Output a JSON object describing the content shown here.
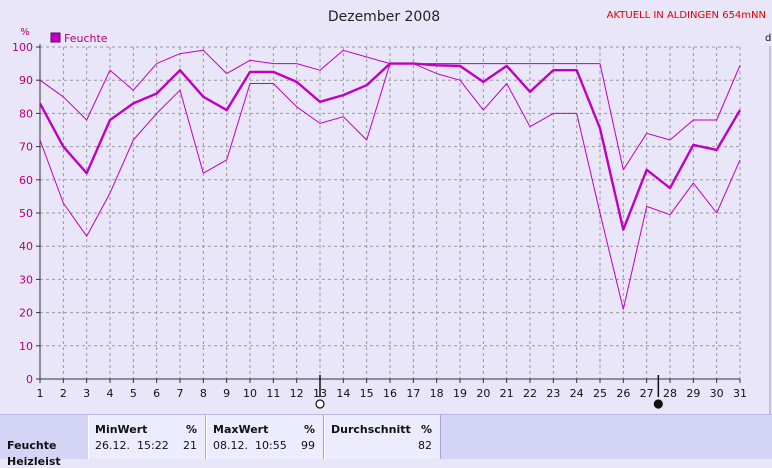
{
  "header": {
    "title": "Dezember 2008",
    "station": "AKTUELL IN ALDINGEN 654mNN",
    "right_cutoff": "d"
  },
  "colors": {
    "series": "#c000c0",
    "grid": "#9a9a9a",
    "ticks": "#b0007a",
    "plot_bg": "#e8e6f8"
  },
  "chart_data": {
    "type": "line",
    "title": "Dezember 2008",
    "ylabel": "%",
    "xlabel": "",
    "ylim": [
      0,
      100
    ],
    "yticks": [
      0,
      10,
      20,
      30,
      40,
      50,
      60,
      70,
      80,
      90,
      100
    ],
    "x": [
      1,
      2,
      3,
      4,
      5,
      6,
      7,
      8,
      9,
      10,
      11,
      12,
      13,
      14,
      15,
      16,
      17,
      18,
      19,
      20,
      21,
      22,
      23,
      24,
      25,
      26,
      27,
      28,
      29,
      30,
      31
    ],
    "legend": {
      "label": "Feuchte",
      "position": "top-left"
    },
    "grid": true,
    "moon_markers": [
      {
        "day": 13,
        "phase": "full-moon"
      },
      {
        "day": 27.5,
        "phase": "new-moon"
      }
    ],
    "series": [
      {
        "name": "Feuchte",
        "role": "mean",
        "values": [
          83,
          70,
          62,
          78,
          83,
          86,
          93,
          85,
          81,
          92.5,
          92.5,
          89.5,
          83.5,
          85.5,
          88.5,
          95,
          95,
          94.5,
          94.3,
          89.5,
          94.3,
          86.5,
          93,
          93,
          75.5,
          45,
          63,
          57.5,
          70.5,
          69,
          81
        ]
      },
      {
        "role": "max",
        "values": [
          90,
          85,
          78,
          93,
          87,
          95,
          98,
          99,
          92,
          96,
          95,
          95,
          93,
          99,
          97,
          95,
          95,
          95,
          95,
          95,
          95,
          95,
          95,
          95,
          95,
          63,
          74,
          72,
          78,
          78,
          94.5
        ]
      },
      {
        "role": "min",
        "values": [
          72,
          53,
          43,
          56,
          72,
          80,
          87,
          62,
          66,
          89,
          89,
          82,
          77,
          79,
          72,
          95,
          95,
          92,
          90,
          81,
          89,
          76,
          80,
          80,
          50,
          21,
          52,
          49.5,
          59,
          50,
          66
        ]
      }
    ]
  },
  "stats": {
    "row_label": "Feuchte",
    "row_label_2": "Heizleist",
    "min": {
      "header": "MinWert",
      "unit": "%",
      "date": "26.12.",
      "time": "15:22",
      "value": "21"
    },
    "max": {
      "header": "MaxWert",
      "unit": "%",
      "date": "08.12.",
      "time": "10:55",
      "value": "99"
    },
    "avg": {
      "header": "Durchschnitt",
      "unit": "%",
      "value": "82"
    }
  }
}
